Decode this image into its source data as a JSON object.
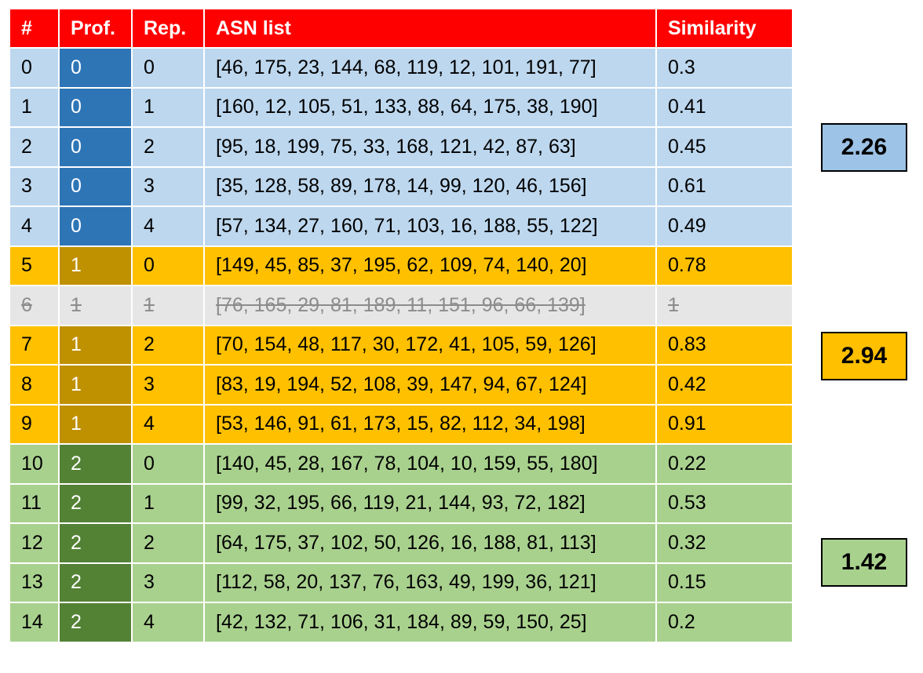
{
  "table": {
    "headers": [
      "#",
      "Prof.",
      "Rep.",
      "ASN list",
      "Similarity"
    ],
    "rows": [
      {
        "idx": "0",
        "prof": "0",
        "rep": "0",
        "asn": "[46, 175, 23, 144, 68, 119, 12, 101, 191, 77]",
        "sim": "0.3",
        "group": 0,
        "excluded": false
      },
      {
        "idx": "1",
        "prof": "0",
        "rep": "1",
        "asn": "[160, 12, 105, 51, 133, 88, 64, 175, 38, 190]",
        "sim": "0.41",
        "group": 0,
        "excluded": false
      },
      {
        "idx": "2",
        "prof": "0",
        "rep": "2",
        "asn": "[95, 18, 199, 75, 33, 168, 121, 42, 87, 63]",
        "sim": "0.45",
        "group": 0,
        "excluded": false
      },
      {
        "idx": "3",
        "prof": "0",
        "rep": "3",
        "asn": "[35, 128, 58, 89, 178, 14, 99, 120, 46, 156]",
        "sim": "0.61",
        "group": 0,
        "excluded": false
      },
      {
        "idx": "4",
        "prof": "0",
        "rep": "4",
        "asn": "[57, 134, 27, 160, 71, 103, 16, 188, 55, 122]",
        "sim": "0.49",
        "group": 0,
        "excluded": false
      },
      {
        "idx": "5",
        "prof": "1",
        "rep": "0",
        "asn": "[149, 45, 85, 37, 195, 62, 109, 74, 140, 20]",
        "sim": "0.78",
        "group": 1,
        "excluded": false
      },
      {
        "idx": "6",
        "prof": "1",
        "rep": "1",
        "asn": "[76, 165, 29, 81, 189, 11, 151, 96, 66, 139]",
        "sim": "1",
        "group": 1,
        "excluded": true
      },
      {
        "idx": "7",
        "prof": "1",
        "rep": "2",
        "asn": "[70, 154, 48, 117, 30, 172, 41, 105, 59, 126]",
        "sim": "0.83",
        "group": 1,
        "excluded": false
      },
      {
        "idx": "8",
        "prof": "1",
        "rep": "3",
        "asn": "[83, 19, 194, 52, 108, 39, 147, 94, 67, 124]",
        "sim": "0.42",
        "group": 1,
        "excluded": false
      },
      {
        "idx": "9",
        "prof": "1",
        "rep": "4",
        "asn": "[53, 146, 91, 61, 173, 15, 82, 112, 34, 198]",
        "sim": "0.91",
        "group": 1,
        "excluded": false
      },
      {
        "idx": "10",
        "prof": "2",
        "rep": "0",
        "asn": "[140, 45, 28, 167, 78, 104, 10, 159, 55, 180]",
        "sim": "0.22",
        "group": 2,
        "excluded": false
      },
      {
        "idx": "11",
        "prof": "2",
        "rep": "1",
        "asn": "[99, 32, 195, 66, 119, 21, 144, 93, 72, 182]",
        "sim": "0.53",
        "group": 2,
        "excluded": false
      },
      {
        "idx": "12",
        "prof": "2",
        "rep": "2",
        "asn": "[64, 175, 37, 102, 50, 126, 16, 188, 81, 113]",
        "sim": "0.32",
        "group": 2,
        "excluded": false
      },
      {
        "idx": "13",
        "prof": "2",
        "rep": "3",
        "asn": "[112, 58, 20, 137, 76, 163, 49, 199, 36, 121]",
        "sim": "0.15",
        "group": 2,
        "excluded": false
      },
      {
        "idx": "14",
        "prof": "2",
        "rep": "4",
        "asn": "[42, 132, 71, 106, 31, 184, 89, 59, 150, 25]",
        "sim": "0.2",
        "group": 2,
        "excluded": false
      }
    ]
  },
  "scores": [
    "2.26",
    "2.94",
    "1.42"
  ],
  "colors": {
    "header": "#ff0000",
    "group0_light": "#bdd7ee",
    "group0_dark": "#2e75b6",
    "group1_light": "#ffc000",
    "group1_dark": "#bf9000",
    "group2_light": "#a9d18e",
    "group2_dark": "#548235",
    "excluded": "#e6e6e6"
  }
}
